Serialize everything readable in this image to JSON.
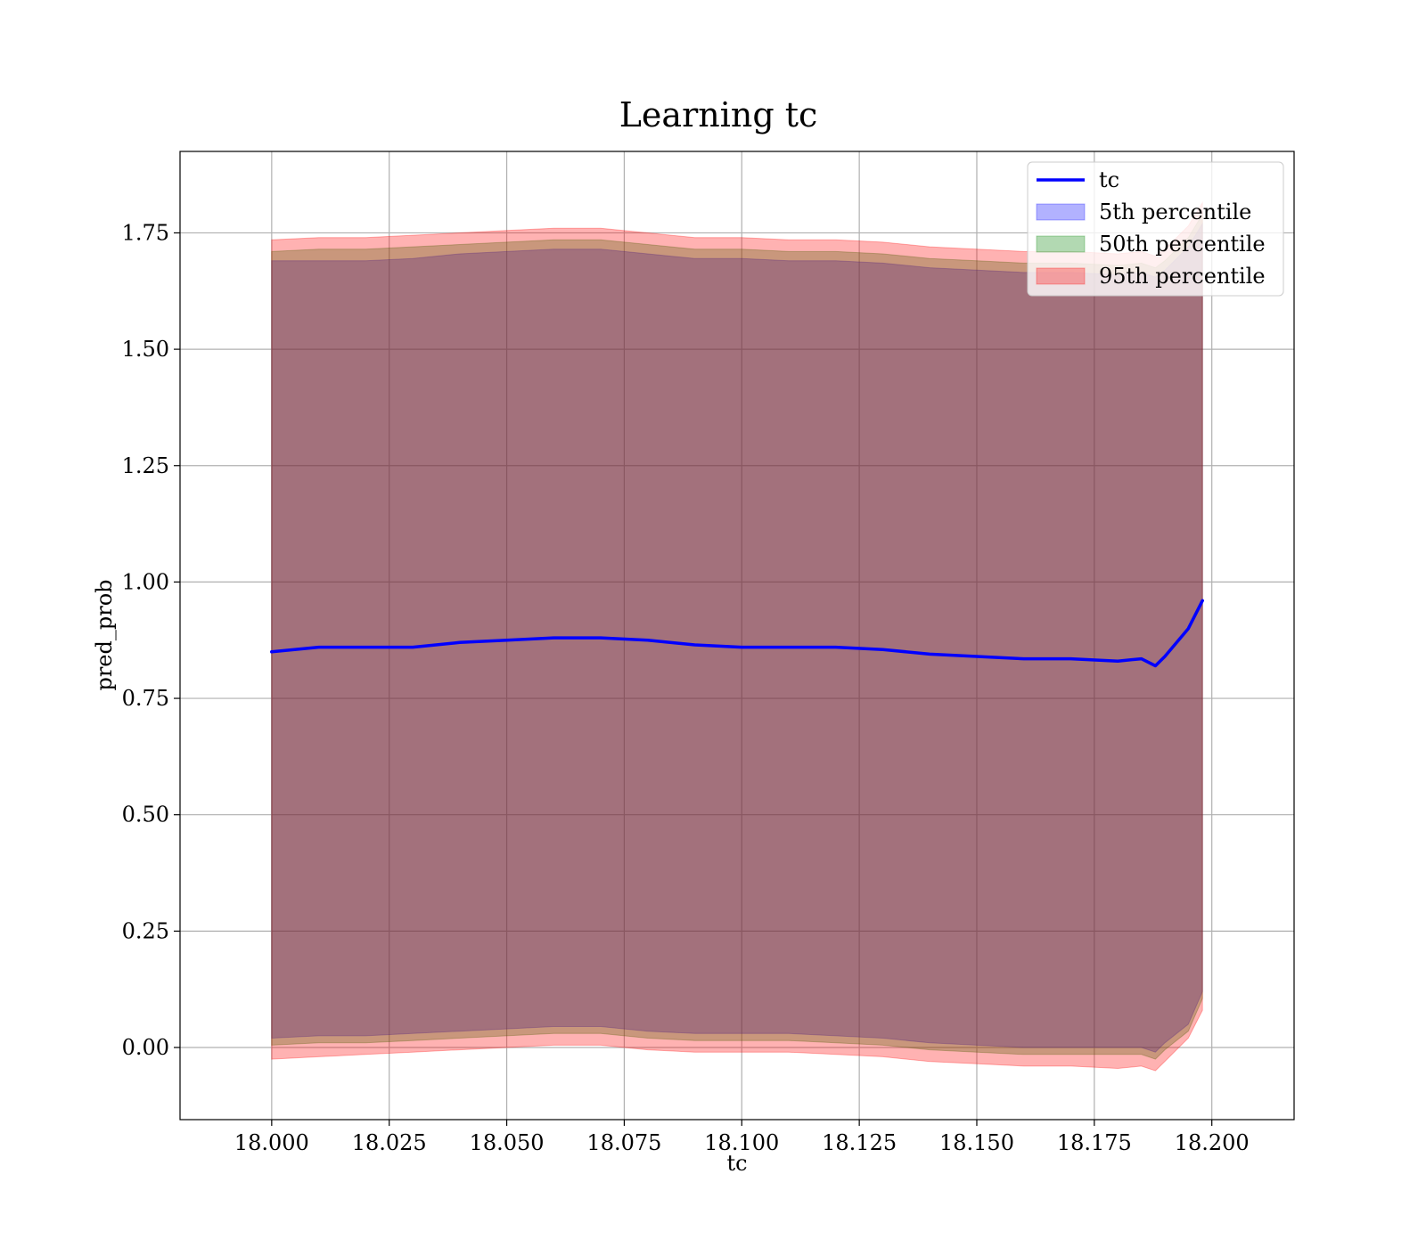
{
  "chart_data": {
    "type": "line",
    "title": "Learning tc",
    "xlabel": "tc",
    "ylabel": "pred_prob",
    "xlim": [
      17.9805,
      18.2175
    ],
    "ylim": [
      -0.155,
      1.925
    ],
    "xticks": [
      18.0,
      18.025,
      18.05,
      18.075,
      18.1,
      18.125,
      18.15,
      18.175,
      18.2
    ],
    "xtick_labels": [
      "18.000",
      "18.025",
      "18.050",
      "18.075",
      "18.100",
      "18.125",
      "18.150",
      "18.175",
      "18.200"
    ],
    "yticks": [
      0.0,
      0.25,
      0.5,
      0.75,
      1.0,
      1.25,
      1.5,
      1.75
    ],
    "ytick_labels": [
      "0.00",
      "0.25",
      "0.50",
      "0.75",
      "1.00",
      "1.25",
      "1.50",
      "1.75"
    ],
    "grid": true,
    "legend_position": "top-right",
    "legend": [
      {
        "label": "tc",
        "kind": "line",
        "color": "#0000ff"
      },
      {
        "label": "5th percentile",
        "kind": "band",
        "color": "#0000ff"
      },
      {
        "label": "50th percentile",
        "kind": "band",
        "color": "#008000"
      },
      {
        "label": "95th percentile",
        "kind": "band",
        "color": "#ff0000"
      }
    ],
    "x": [
      18.0,
      18.01,
      18.02,
      18.03,
      18.04,
      18.05,
      18.06,
      18.07,
      18.08,
      18.09,
      18.1,
      18.11,
      18.12,
      18.13,
      18.14,
      18.15,
      18.16,
      18.17,
      18.18,
      18.185,
      18.188,
      18.19,
      18.195,
      18.198
    ],
    "series": [
      {
        "name": "tc",
        "role": "line",
        "color": "#0000ff",
        "values": [
          0.85,
          0.86,
          0.86,
          0.86,
          0.87,
          0.875,
          0.88,
          0.88,
          0.875,
          0.865,
          0.86,
          0.86,
          0.86,
          0.855,
          0.845,
          0.84,
          0.835,
          0.835,
          0.83,
          0.835,
          0.82,
          0.84,
          0.9,
          0.96
        ]
      },
      {
        "name": "5th percentile",
        "role": "band",
        "color": "#0000ff",
        "opacity": 0.3,
        "lower": [
          0.02,
          0.025,
          0.025,
          0.03,
          0.035,
          0.04,
          0.045,
          0.045,
          0.035,
          0.03,
          0.03,
          0.03,
          0.025,
          0.02,
          0.01,
          0.005,
          0.0,
          0.0,
          0.0,
          0.0,
          -0.01,
          0.01,
          0.05,
          0.12
        ],
        "upper": [
          1.69,
          1.69,
          1.69,
          1.695,
          1.705,
          1.71,
          1.715,
          1.715,
          1.705,
          1.695,
          1.695,
          1.69,
          1.69,
          1.685,
          1.675,
          1.67,
          1.665,
          1.665,
          1.66,
          1.665,
          1.655,
          1.67,
          1.72,
          1.77
        ]
      },
      {
        "name": "50th percentile",
        "role": "band",
        "color": "#008000",
        "opacity": 0.3,
        "lower": [
          0.005,
          0.01,
          0.01,
          0.015,
          0.02,
          0.025,
          0.03,
          0.03,
          0.02,
          0.015,
          0.015,
          0.015,
          0.01,
          0.005,
          -0.005,
          -0.01,
          -0.015,
          -0.015,
          -0.015,
          -0.015,
          -0.025,
          -0.005,
          0.035,
          0.105
        ],
        "upper": [
          1.71,
          1.715,
          1.715,
          1.72,
          1.725,
          1.73,
          1.735,
          1.735,
          1.725,
          1.715,
          1.715,
          1.71,
          1.71,
          1.705,
          1.695,
          1.69,
          1.685,
          1.685,
          1.68,
          1.685,
          1.675,
          1.69,
          1.74,
          1.79
        ]
      },
      {
        "name": "95th percentile",
        "role": "band",
        "color": "#ff0000",
        "opacity": 0.3,
        "lower": [
          -0.025,
          -0.02,
          -0.015,
          -0.01,
          -0.005,
          0.0,
          0.005,
          0.005,
          -0.005,
          -0.01,
          -0.01,
          -0.01,
          -0.015,
          -0.02,
          -0.03,
          -0.035,
          -0.04,
          -0.04,
          -0.045,
          -0.04,
          -0.05,
          -0.03,
          0.02,
          0.08
        ],
        "upper": [
          1.735,
          1.74,
          1.74,
          1.745,
          1.75,
          1.755,
          1.76,
          1.76,
          1.75,
          1.74,
          1.74,
          1.735,
          1.735,
          1.73,
          1.72,
          1.715,
          1.71,
          1.71,
          1.705,
          1.71,
          1.7,
          1.715,
          1.765,
          1.815
        ]
      }
    ]
  }
}
